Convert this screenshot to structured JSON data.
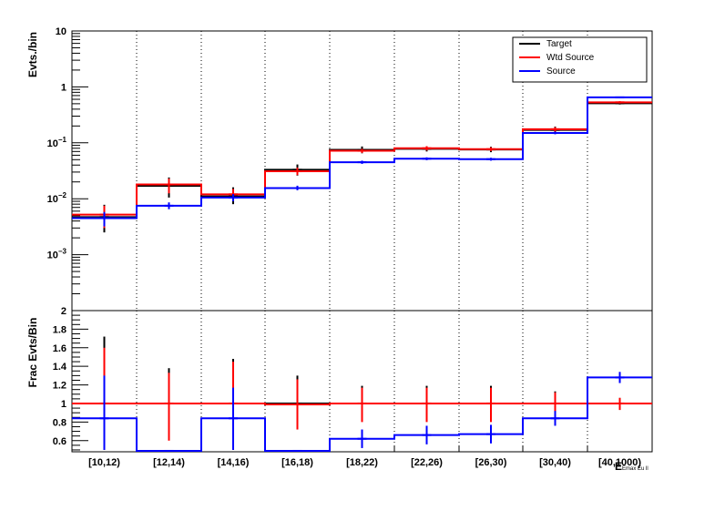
{
  "chart_data": [
    {
      "type": "line",
      "ylabel": "Evts./bin",
      "log_y": true,
      "ylim": [
        0.0001,
        10
      ],
      "y_ticks": [
        {
          "value": 10,
          "base": "10",
          "exp": ""
        },
        {
          "value": 1,
          "base": "1",
          "exp": ""
        },
        {
          "value": 0.1,
          "base": "10",
          "exp": "−1"
        },
        {
          "value": 0.01,
          "base": "10",
          "exp": "−2"
        },
        {
          "value": 0.001,
          "base": "10",
          "exp": "−3"
        }
      ],
      "grid_x": true,
      "legend_position": "top-right",
      "legend": [
        "Target",
        "Wtd Source",
        "Source"
      ],
      "series": [
        {
          "name": "Target",
          "color": "#000000",
          "values": [
            0.0047,
            0.017,
            0.011,
            0.033,
            0.075,
            0.078,
            0.076,
            0.17,
            0.51
          ],
          "err_lo": [
            0.0025,
            0.0105,
            0.008,
            0.026,
            0.065,
            0.07,
            0.068,
            0.145,
            0.485
          ],
          "err_hi": [
            0.0078,
            0.024,
            0.016,
            0.041,
            0.086,
            0.087,
            0.085,
            0.195,
            0.54
          ]
        },
        {
          "name": "Wtd Source",
          "color": "#ff0000",
          "values": [
            0.0052,
            0.018,
            0.012,
            0.031,
            0.072,
            0.08,
            0.077,
            0.175,
            0.53
          ],
          "err_lo": [
            0.003,
            0.0125,
            0.0092,
            0.0265,
            0.066,
            0.073,
            0.071,
            0.16,
            0.505
          ],
          "err_hi": [
            0.0075,
            0.023,
            0.015,
            0.036,
            0.078,
            0.087,
            0.083,
            0.19,
            0.555
          ]
        },
        {
          "name": "Source",
          "color": "#0000ff",
          "values": [
            0.0045,
            0.0075,
            0.0105,
            0.0155,
            0.045,
            0.052,
            0.051,
            0.15,
            0.65
          ],
          "err_lo": [
            0.0032,
            0.0065,
            0.009,
            0.0142,
            0.042,
            0.049,
            0.048,
            0.142,
            0.63
          ],
          "err_hi": [
            0.0058,
            0.0086,
            0.0121,
            0.0171,
            0.048,
            0.055,
            0.054,
            0.158,
            0.67
          ]
        }
      ]
    },
    {
      "type": "line",
      "ylabel": "Frac Evts/Bin",
      "xlabel": "E",
      "xlabel_sub": "Emax Eu ll",
      "categories": [
        "[10,12)",
        "[12,14)",
        "[14,16)",
        "[16,18)",
        "[18,22)",
        "[22,26)",
        "[26,30)",
        "[30,40)",
        "[40,1000)"
      ],
      "ylim": [
        0.48,
        2.0
      ],
      "y_ticks": [
        "0.6",
        "0.8",
        "1",
        "1.2",
        "1.4",
        "1.6",
        "1.8",
        "2"
      ],
      "grid_x": true,
      "series": [
        {
          "name": "Target",
          "color": "#000000",
          "values": [
            1,
            1,
            1,
            1,
            1,
            1,
            1,
            1,
            1
          ],
          "err_lo": [
            0.5,
            0.62,
            0.5,
            0.72,
            0.82,
            0.82,
            0.82,
            0.88,
            0.95
          ],
          "err_hi": [
            1.72,
            1.38,
            1.48,
            1.3,
            1.19,
            1.19,
            1.19,
            1.13,
            1.06
          ]
        },
        {
          "name": "Wtd Source",
          "color": "#ff0000",
          "values": [
            1,
            1,
            1,
            0.99,
            1,
            1,
            1,
            1,
            1
          ],
          "err_lo": [
            0.5,
            0.6,
            0.5,
            0.72,
            0.8,
            0.8,
            0.8,
            0.85,
            0.93
          ],
          "err_hi": [
            1.6,
            1.33,
            1.45,
            1.26,
            1.17,
            1.17,
            1.17,
            1.12,
            1.06
          ]
        },
        {
          "name": "Source",
          "color": "#0000ff",
          "values": [
            0.84,
            0.49,
            0.84,
            0.49,
            0.62,
            0.66,
            0.67,
            0.84,
            1.28
          ],
          "err_lo": [
            0.5,
            0.49,
            0.5,
            0.49,
            0.52,
            0.56,
            0.57,
            0.76,
            1.22
          ],
          "err_hi": [
            1.3,
            0.49,
            1.17,
            0.49,
            0.72,
            0.76,
            0.77,
            0.92,
            1.34
          ]
        }
      ]
    }
  ]
}
